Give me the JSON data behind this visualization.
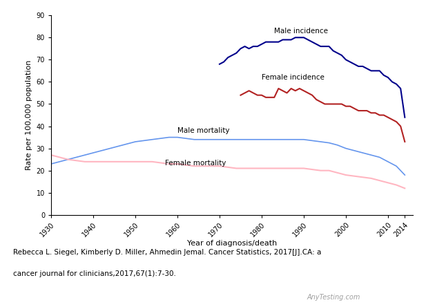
{
  "title": "",
  "xlabel": "Year of diagnosis/death",
  "ylabel": "Rate per 100,000 population",
  "ylim": [
    0,
    90
  ],
  "yticks": [
    0,
    10,
    20,
    30,
    40,
    50,
    60,
    70,
    80,
    90
  ],
  "xlim": [
    1930,
    2016
  ],
  "xticks": [
    1930,
    1940,
    1950,
    1960,
    1970,
    1980,
    1990,
    2000,
    2010,
    2014
  ],
  "caption_line1": "Rebecca L. Siegel, Kimberly D. Miller, Ahmedin Jemal. Cancer Statistics, 2017[J].CA: a",
  "caption_line2": "cancer journal for clinicians,2017,67(1):7-30.",
  "watermark": "AnyTesting.com",
  "male_incidence_label": "Male incidence",
  "female_incidence_label": "Female incidence",
  "male_mortality_label": "Male mortality",
  "female_mortality_label": "Female mortality",
  "male_incidence_color": "#00008B",
  "female_incidence_color": "#B22222",
  "male_mortality_color": "#6495ED",
  "female_mortality_color": "#FFB6C1",
  "male_incidence": {
    "years": [
      1970,
      1971,
      1972,
      1973,
      1974,
      1975,
      1976,
      1977,
      1978,
      1979,
      1980,
      1981,
      1982,
      1983,
      1984,
      1985,
      1986,
      1987,
      1988,
      1989,
      1990,
      1991,
      1992,
      1993,
      1994,
      1995,
      1996,
      1997,
      1998,
      1999,
      2000,
      2001,
      2002,
      2003,
      2004,
      2005,
      2006,
      2007,
      2008,
      2009,
      2010,
      2011,
      2012,
      2013,
      2014
    ],
    "values": [
      68,
      69,
      71,
      72,
      73,
      75,
      76,
      75,
      76,
      76,
      77,
      78,
      78,
      78,
      78,
      79,
      79,
      79,
      80,
      80,
      80,
      79,
      78,
      77,
      76,
      76,
      76,
      74,
      73,
      72,
      70,
      69,
      68,
      67,
      67,
      66,
      65,
      65,
      65,
      63,
      62,
      60,
      59,
      57,
      44
    ]
  },
  "female_incidence": {
    "years": [
      1975,
      1976,
      1977,
      1978,
      1979,
      1980,
      1981,
      1982,
      1983,
      1984,
      1985,
      1986,
      1987,
      1988,
      1989,
      1990,
      1991,
      1992,
      1993,
      1994,
      1995,
      1996,
      1997,
      1998,
      1999,
      2000,
      2001,
      2002,
      2003,
      2004,
      2005,
      2006,
      2007,
      2008,
      2009,
      2010,
      2011,
      2012,
      2013,
      2014
    ],
    "values": [
      54,
      55,
      56,
      55,
      54,
      54,
      53,
      53,
      53,
      57,
      56,
      55,
      57,
      56,
      57,
      56,
      55,
      54,
      52,
      51,
      50,
      50,
      50,
      50,
      50,
      49,
      49,
      48,
      47,
      47,
      47,
      46,
      46,
      45,
      45,
      44,
      43,
      42,
      40,
      33
    ]
  },
  "male_mortality": {
    "years": [
      1930,
      1932,
      1934,
      1936,
      1938,
      1940,
      1942,
      1944,
      1946,
      1948,
      1950,
      1952,
      1954,
      1956,
      1958,
      1960,
      1962,
      1964,
      1966,
      1968,
      1970,
      1972,
      1974,
      1976,
      1978,
      1980,
      1982,
      1984,
      1986,
      1988,
      1990,
      1992,
      1994,
      1996,
      1998,
      2000,
      2002,
      2004,
      2006,
      2008,
      2010,
      2012,
      2014
    ],
    "values": [
      23,
      24,
      25,
      26,
      27,
      28,
      29,
      30,
      31,
      32,
      33,
      33.5,
      34,
      34.5,
      35,
      35,
      34.5,
      34,
      34,
      34,
      34,
      34,
      34,
      34,
      34,
      34,
      34,
      34,
      34,
      34,
      34,
      33.5,
      33,
      32.5,
      31.5,
      30,
      29,
      28,
      27,
      26,
      24,
      22,
      18
    ]
  },
  "female_mortality": {
    "years": [
      1930,
      1932,
      1934,
      1936,
      1938,
      1940,
      1942,
      1944,
      1946,
      1948,
      1950,
      1952,
      1954,
      1956,
      1958,
      1960,
      1962,
      1964,
      1966,
      1968,
      1970,
      1972,
      1974,
      1976,
      1978,
      1980,
      1982,
      1984,
      1986,
      1988,
      1990,
      1992,
      1994,
      1996,
      1998,
      2000,
      2002,
      2004,
      2006,
      2008,
      2010,
      2012,
      2014
    ],
    "values": [
      27,
      26,
      25,
      24.5,
      24,
      24,
      24,
      24,
      24,
      24,
      24,
      24,
      24,
      23.5,
      23,
      23,
      22.5,
      22,
      22,
      22,
      22,
      21.5,
      21,
      21,
      21,
      21,
      21,
      21,
      21,
      21,
      21,
      20.5,
      20,
      20,
      19,
      18,
      17.5,
      17,
      16.5,
      15.5,
      14.5,
      13.5,
      12
    ]
  }
}
